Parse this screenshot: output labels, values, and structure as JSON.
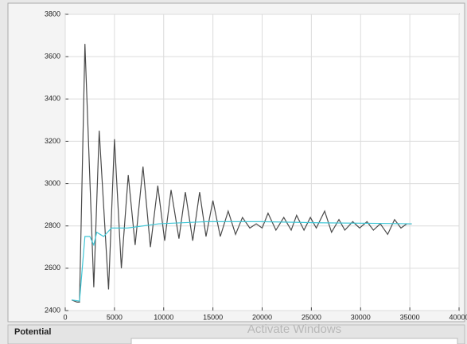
{
  "chart_data": {
    "type": "line",
    "series": [
      {
        "color": "#4a4a4a",
        "x": [
          650,
          1200,
          1450,
          2000,
          2900,
          3450,
          4400,
          5000,
          5700,
          6400,
          7100,
          7900,
          8650,
          9400,
          10100,
          10750,
          11550,
          12200,
          12950,
          13650,
          14300,
          15000,
          15750,
          16550,
          17300,
          18000,
          18750,
          19400,
          20000,
          20600,
          21400,
          22200,
          22950,
          23500,
          24250,
          24900,
          25500,
          26350,
          27050,
          27800,
          28400,
          29200,
          29900,
          30650,
          31300,
          32000,
          32750,
          33450,
          34100,
          34700,
          35200
        ],
        "values": [
          2450,
          2440,
          2440,
          3660,
          2510,
          3250,
          2500,
          3210,
          2600,
          3040,
          2710,
          3080,
          2700,
          2990,
          2730,
          2970,
          2740,
          2960,
          2730,
          2960,
          2750,
          2920,
          2750,
          2870,
          2760,
          2840,
          2790,
          2810,
          2790,
          2860,
          2780,
          2840,
          2780,
          2850,
          2780,
          2840,
          2790,
          2870,
          2770,
          2830,
          2780,
          2820,
          2790,
          2820,
          2780,
          2810,
          2760,
          2830,
          2790,
          2810,
          2810
        ]
      },
      {
        "color": "#3ec6d6",
        "x": [
          650,
          1450,
          2000,
          2500,
          2900,
          3200,
          3900,
          4700,
          6300,
          9500,
          14300,
          20000,
          25700,
          35200
        ],
        "values": [
          2450,
          2445,
          2750,
          2750,
          2710,
          2770,
          2750,
          2790,
          2790,
          2810,
          2820,
          2820,
          2815,
          2810
        ]
      }
    ],
    "xlim": [
      0,
      40000
    ],
    "xticks": [
      0,
      5000,
      10000,
      15000,
      20000,
      25000,
      30000,
      35000,
      40000
    ],
    "ylim": [
      2400,
      3800
    ],
    "yticks": [
      2400,
      2600,
      2800,
      3000,
      3200,
      3400,
      3600,
      3800
    ],
    "grid": true
  },
  "panel": {
    "label": "Potential"
  },
  "watermark": "Activate Windows"
}
